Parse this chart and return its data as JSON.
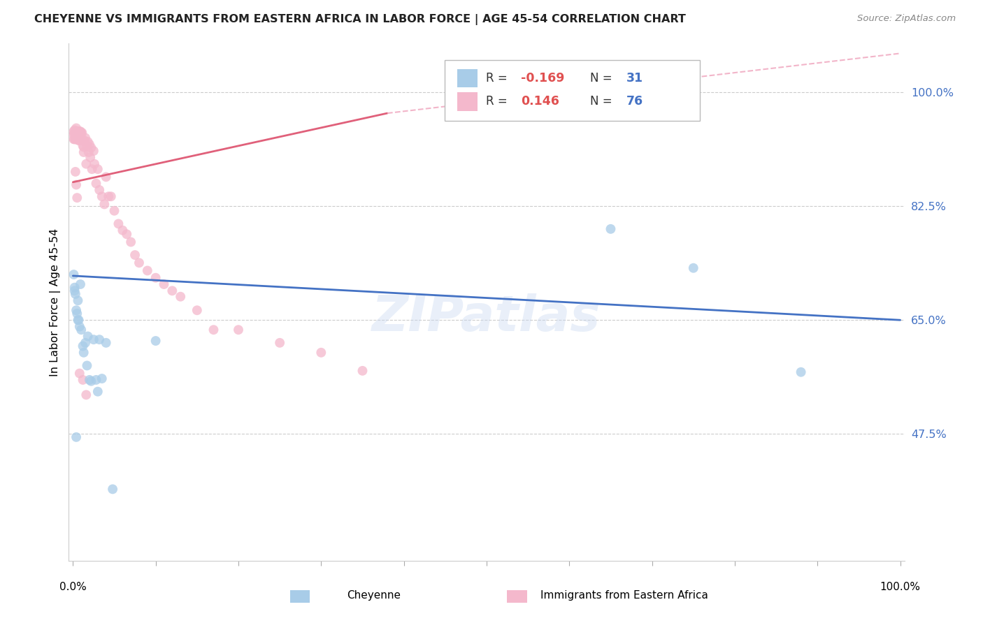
{
  "title": "CHEYENNE VS IMMIGRANTS FROM EASTERN AFRICA IN LABOR FORCE | AGE 45-54 CORRELATION CHART",
  "source": "Source: ZipAtlas.com",
  "ylabel": "In Labor Force | Age 45-54",
  "watermark": "ZIPatlas",
  "cheyenne_R": -0.169,
  "cheyenne_N": 31,
  "eastern_africa_R": 0.146,
  "eastern_africa_N": 76,
  "blue_color": "#a8cce8",
  "blue_line_color": "#4472c4",
  "pink_color": "#f4b8cc",
  "pink_line_color": "#e0607a",
  "pink_dashed_color": "#f0a8c0",
  "xlim": [
    -0.005,
    1.005
  ],
  "ylim": [
    0.28,
    1.075
  ],
  "yticks": [
    0.475,
    0.65,
    0.825,
    1.0
  ],
  "ytick_labels": [
    "47.5%",
    "65.0%",
    "82.5%",
    "100.0%"
  ],
  "cheyenne_x": [
    0.001,
    0.002,
    0.003,
    0.004,
    0.005,
    0.006,
    0.006,
    0.007,
    0.008,
    0.009,
    0.01,
    0.012,
    0.013,
    0.015,
    0.017,
    0.018,
    0.02,
    0.022,
    0.025,
    0.028,
    0.03,
    0.032,
    0.035,
    0.04,
    0.048,
    0.1,
    0.65,
    0.75,
    0.88,
    0.002,
    0.004
  ],
  "cheyenne_y": [
    0.72,
    0.7,
    0.69,
    0.665,
    0.66,
    0.68,
    0.65,
    0.65,
    0.64,
    0.705,
    0.635,
    0.61,
    0.6,
    0.615,
    0.58,
    0.625,
    0.558,
    0.556,
    0.62,
    0.558,
    0.54,
    0.62,
    0.56,
    0.615,
    0.39,
    0.618,
    0.79,
    0.73,
    0.57,
    0.695,
    0.47
  ],
  "eastern_africa_x": [
    0.001,
    0.001,
    0.001,
    0.002,
    0.002,
    0.002,
    0.003,
    0.003,
    0.003,
    0.004,
    0.004,
    0.004,
    0.005,
    0.005,
    0.005,
    0.006,
    0.006,
    0.007,
    0.007,
    0.007,
    0.008,
    0.008,
    0.008,
    0.009,
    0.009,
    0.01,
    0.01,
    0.011,
    0.012,
    0.012,
    0.013,
    0.013,
    0.014,
    0.015,
    0.016,
    0.017,
    0.018,
    0.019,
    0.02,
    0.021,
    0.022,
    0.023,
    0.025,
    0.026,
    0.028,
    0.03,
    0.032,
    0.035,
    0.038,
    0.04,
    0.043,
    0.046,
    0.05,
    0.055,
    0.06,
    0.065,
    0.07,
    0.075,
    0.08,
    0.09,
    0.1,
    0.11,
    0.12,
    0.13,
    0.15,
    0.17,
    0.2,
    0.25,
    0.3,
    0.35,
    0.003,
    0.004,
    0.005,
    0.008,
    0.012,
    0.016
  ],
  "eastern_africa_y": [
    0.94,
    0.935,
    0.928,
    0.942,
    0.936,
    0.928,
    0.94,
    0.936,
    0.928,
    0.945,
    0.938,
    0.928,
    0.94,
    0.935,
    0.93,
    0.94,
    0.934,
    0.94,
    0.932,
    0.926,
    0.94,
    0.933,
    0.926,
    0.94,
    0.93,
    0.938,
    0.928,
    0.938,
    0.918,
    0.926,
    0.908,
    0.916,
    0.926,
    0.93,
    0.89,
    0.918,
    0.924,
    0.908,
    0.92,
    0.9,
    0.915,
    0.882,
    0.91,
    0.89,
    0.86,
    0.882,
    0.85,
    0.84,
    0.828,
    0.87,
    0.84,
    0.84,
    0.818,
    0.798,
    0.788,
    0.782,
    0.77,
    0.75,
    0.738,
    0.726,
    0.715,
    0.705,
    0.695,
    0.686,
    0.665,
    0.635,
    0.635,
    0.615,
    0.6,
    0.572,
    0.878,
    0.858,
    0.838,
    0.568,
    0.558,
    0.535
  ],
  "blue_line_x0": 0.0,
  "blue_line_y0": 0.718,
  "blue_line_x1": 1.0,
  "blue_line_y1": 0.65,
  "pink_line_solid_x0": 0.0,
  "pink_line_solid_y0": 0.862,
  "pink_line_solid_x1": 0.38,
  "pink_line_solid_y1": 0.968,
  "pink_line_dash_x0": 0.38,
  "pink_line_dash_y0": 0.968,
  "pink_line_dash_x1": 1.0,
  "pink_line_dash_y1": 1.06,
  "xtick_positions": [
    0.0,
    0.1,
    0.2,
    0.3,
    0.4,
    0.5,
    0.6,
    0.7,
    0.8,
    0.9,
    1.0
  ],
  "legend_R1": "R = ",
  "legend_V1": "-0.169",
  "legend_N1": "N = ",
  "legend_NV1": "31",
  "legend_R2": "R = ",
  "legend_V2": "0.146",
  "legend_N2": "N = ",
  "legend_NV2": "76",
  "legend_label1": "Cheyenne",
  "legend_label2": "Immigrants from Eastern Africa"
}
